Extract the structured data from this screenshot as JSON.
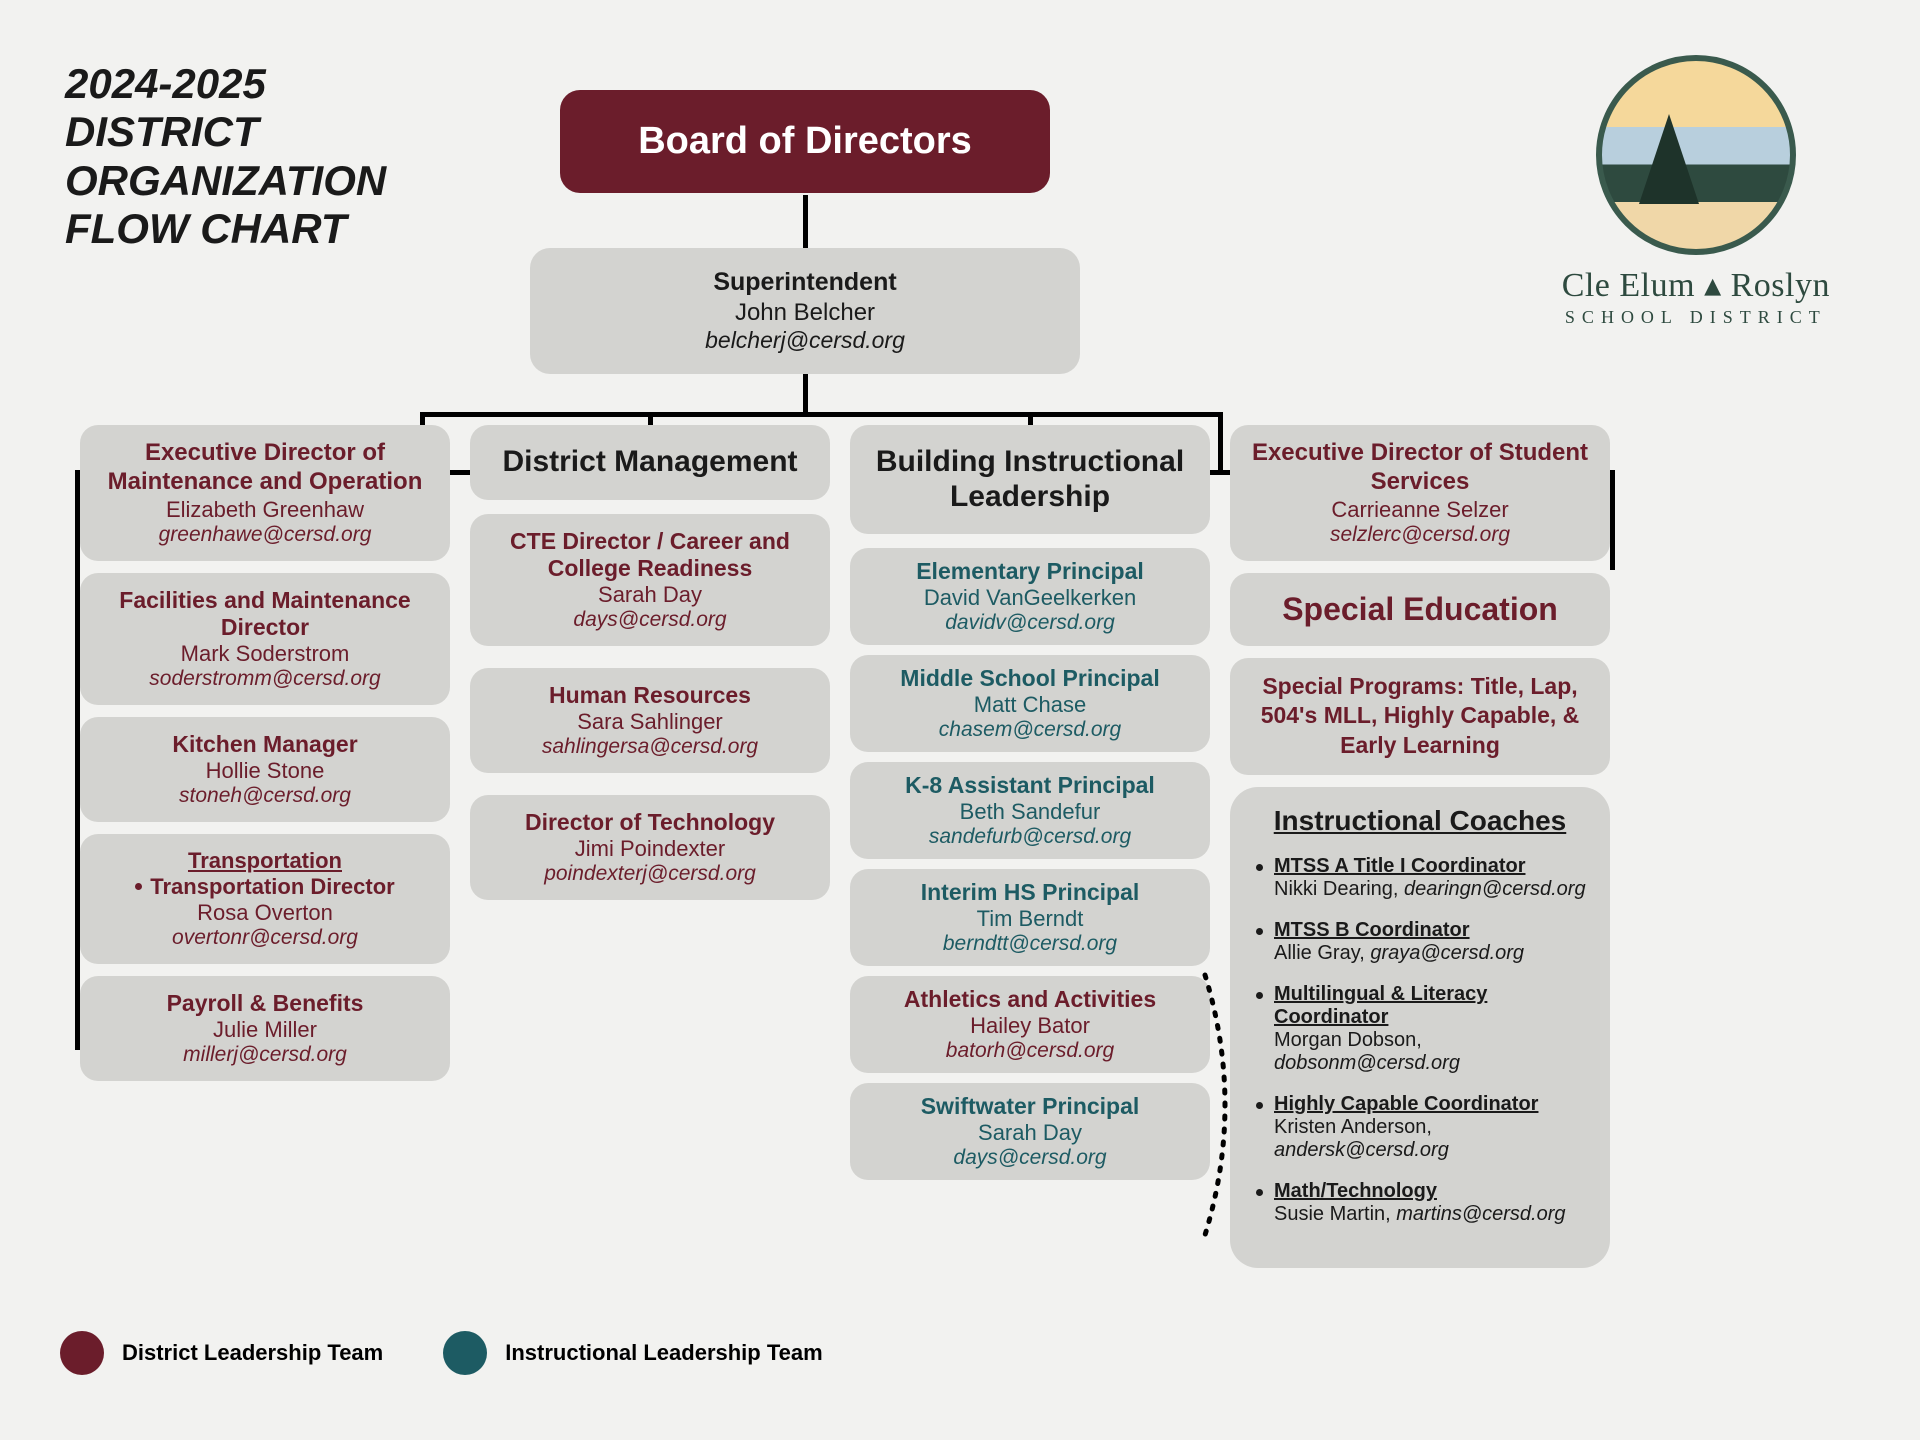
{
  "title_lines": [
    "2024-2025",
    "DISTRICT",
    "ORGANIZATION",
    "FLOW CHART"
  ],
  "district_name_1": "Cle Elum ▴ Roslyn",
  "district_name_2": "SCHOOL DISTRICT",
  "board": "Board of Directors",
  "superintendent": {
    "role": "Superintendent",
    "name": "John Belcher",
    "email": "belcherj@cersd.org"
  },
  "col1_header": {
    "role": "Executive Director of Maintenance and Operation",
    "name": "Elizabeth Greenhaw",
    "email": "greenhawe@cersd.org"
  },
  "col1_items": [
    {
      "role": "Facilities and Maintenance Director",
      "name": "Mark Soderstrom",
      "email": "soderstromm@cersd.org"
    },
    {
      "role": "Kitchen Manager",
      "name": "Hollie Stone",
      "email": "stoneh@cersd.org"
    }
  ],
  "transportation": {
    "header": "Transportation",
    "sub_role": "Transportation Director",
    "name": "Rosa Overton",
    "email": "overtonr@cersd.org"
  },
  "payroll": {
    "role": "Payroll & Benefits",
    "name": "Julie Miller",
    "email": "millerj@cersd.org"
  },
  "col2_header": "District Management",
  "col2_items": [
    {
      "role": "CTE Director / Career and College Readiness",
      "name": "Sarah Day",
      "email": "days@cersd.org"
    },
    {
      "role": "Human Resources",
      "name": "Sara Sahlinger",
      "email": "sahlingersa@cersd.org"
    },
    {
      "role": "Director of Technology",
      "name": "Jimi Poindexter",
      "email": "poindexterj@cersd.org"
    }
  ],
  "col3_header": "Building Instructional Leadership",
  "col3_items": [
    {
      "cls": "teal",
      "role": "Elementary Principal",
      "name": "David VanGeelkerken",
      "email": "davidv@cersd.org"
    },
    {
      "cls": "teal",
      "role": "Middle School Principal",
      "name": "Matt Chase",
      "email": "chasem@cersd.org"
    },
    {
      "cls": "teal",
      "role": "K-8 Assistant Principal",
      "name": "Beth Sandefur",
      "email": "sandefurb@cersd.org"
    },
    {
      "cls": "teal",
      "role": "Interim HS Principal",
      "name": "Tim Berndt",
      "email": "berndtt@cersd.org"
    },
    {
      "cls": "maroon",
      "role": "Athletics and Activities",
      "name": "Hailey Bator",
      "email": "batorh@cersd.org"
    },
    {
      "cls": "teal",
      "role": "Swiftwater Principal",
      "name": "Sarah Day",
      "email": "days@cersd.org"
    }
  ],
  "col4_header": {
    "role": "Executive Director of Student Services",
    "name": "Carrieanne Selzer",
    "email": "selzlerc@cersd.org"
  },
  "special_edu": "Special Education",
  "special_programs": "Special Programs: Title, Lap, 504's MLL, Highly Capable, & Early Learning",
  "coaches_title": "Instructional Coaches",
  "coaches": [
    {
      "role": "MTSS A Title I Coordinator",
      "name": "Nikki Dearing, ",
      "email": "dearingn@cersd.org"
    },
    {
      "role": "MTSS B Coordinator",
      "name": "Allie Gray, ",
      "email": "graya@cersd.org"
    },
    {
      "role": "Multilingual & Literacy Coordinator",
      "name": "Morgan Dobson, ",
      "email": "dobsonm@cersd.org"
    },
    {
      "role": "Highly Capable Coordinator",
      "name": "Kristen Anderson, ",
      "email": "andersk@cersd.org"
    },
    {
      "role": "Math/Technology",
      "name": "Susie Martin, ",
      "email": "martins@cersd.org"
    }
  ],
  "legend": [
    {
      "color": "#6b1d2b",
      "label": "District Leadership Team"
    },
    {
      "color": "#1d5b63",
      "label": "Instructional Leadership Team"
    }
  ],
  "colors": {
    "bg": "#f2f2f0",
    "node": "#d3d3d0",
    "maroon": "#6b1d2b",
    "teal": "#1d5b63",
    "text": "#1a1a1a"
  }
}
